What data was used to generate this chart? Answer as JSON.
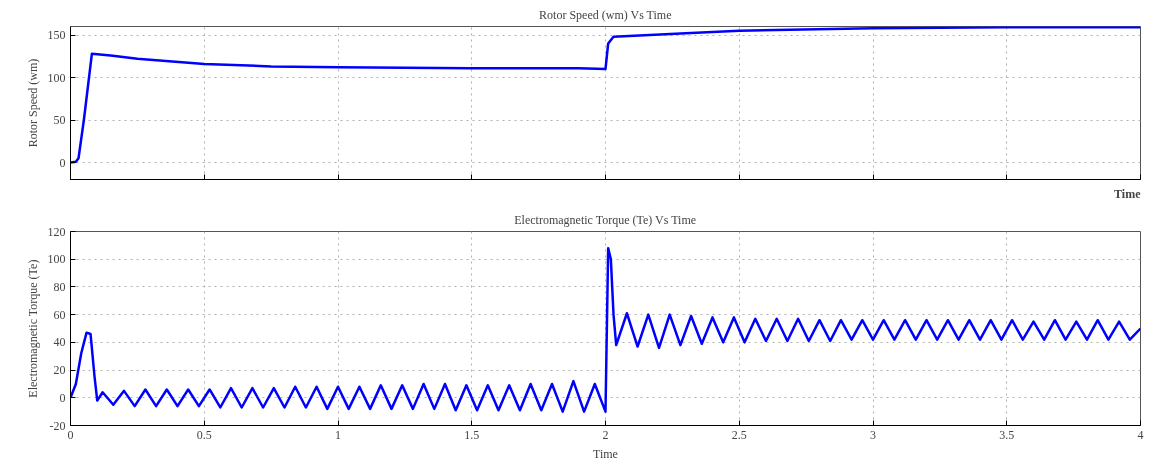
{
  "chart_data": [
    {
      "type": "line",
      "title": "Rotor Speed (wm) Vs Time",
      "xlabel": "Time",
      "ylabel": "Rotor Speed (wm)",
      "xlim": [
        0,
        4
      ],
      "xticks": [
        0,
        0.5,
        1,
        1.5,
        2,
        2.5,
        3,
        3.5,
        4
      ],
      "ylim": [
        -20,
        160
      ],
      "yticks": [
        0,
        50,
        100,
        150
      ],
      "grid": true,
      "tick_labels": "y",
      "line_style": "solid",
      "series": [
        {
          "color": "#0000ff",
          "x": [
            0,
            0.02,
            0.03,
            0.05,
            0.08,
            0.15,
            0.25,
            0.5,
            0.75,
            1,
            1.5,
            1.9,
            2,
            2.01,
            2.03,
            2.3,
            2.5,
            3,
            3.5,
            4
          ],
          "values": [
            0,
            1,
            5,
            50,
            128,
            126,
            122,
            116,
            113,
            112,
            111,
            111,
            110,
            140,
            148,
            152,
            155,
            158,
            159,
            159
          ]
        }
      ]
    },
    {
      "type": "line",
      "title": "Electromagnetic Torque (Te) Vs Time",
      "xlabel": "Time",
      "ylabel": "Electromagnetic Torque (Te)",
      "xlim": [
        0,
        4
      ],
      "xticks": [
        0,
        0.5,
        1,
        1.5,
        2,
        2.5,
        3,
        3.5,
        4
      ],
      "ylim": [
        -20,
        120
      ],
      "yticks": [
        -20,
        0,
        20,
        40,
        60,
        80,
        100,
        120
      ],
      "grid": true,
      "line_style": "solid",
      "series": [
        {
          "color": "#0000ff",
          "x": [
            0,
            0.02,
            0.04,
            0.06,
            0.075,
            0.09,
            0.1,
            0.12,
            0.16,
            0.2,
            0.24,
            0.28,
            0.32,
            0.36,
            0.4,
            0.44,
            0.48,
            0.52,
            0.56,
            0.6,
            0.64,
            0.68,
            0.72,
            0.76,
            0.8,
            0.84,
            0.88,
            0.92,
            0.96,
            1.0,
            1.04,
            1.08,
            1.12,
            1.16,
            1.2,
            1.24,
            1.28,
            1.32,
            1.36,
            1.4,
            1.44,
            1.48,
            1.52,
            1.56,
            1.6,
            1.64,
            1.68,
            1.72,
            1.76,
            1.8,
            1.84,
            1.88,
            1.92,
            1.96,
            2.0,
            2.01,
            2.02,
            2.03,
            2.04,
            2.08,
            2.12,
            2.16,
            2.2,
            2.24,
            2.28,
            2.32,
            2.36,
            2.4,
            2.44,
            2.48,
            2.52,
            2.56,
            2.6,
            2.64,
            2.68,
            2.72,
            2.76,
            2.8,
            2.84,
            2.88,
            2.92,
            2.96,
            3.0,
            3.04,
            3.08,
            3.12,
            3.16,
            3.2,
            3.24,
            3.28,
            3.32,
            3.36,
            3.4,
            3.44,
            3.48,
            3.52,
            3.56,
            3.6,
            3.64,
            3.68,
            3.72,
            3.76,
            3.8,
            3.84,
            3.88,
            3.92,
            3.96,
            4.0
          ],
          "values": [
            0,
            10,
            32,
            47,
            46,
            15,
            -2,
            4,
            -5,
            5,
            -6,
            6,
            -6,
            6,
            -6,
            6,
            -6,
            6,
            -7,
            7,
            -7,
            7,
            -7,
            7,
            -7,
            8,
            -7,
            8,
            -8,
            8,
            -8,
            8,
            -8,
            9,
            -8,
            9,
            -8,
            10,
            -8,
            10,
            -9,
            9,
            -9,
            9,
            -9,
            9,
            -9,
            10,
            -9,
            10,
            -10,
            12,
            -10,
            10,
            -10,
            108,
            100,
            60,
            38,
            61,
            37,
            60,
            36,
            60,
            38,
            59,
            39,
            58,
            40,
            58,
            40,
            57,
            41,
            57,
            41,
            57,
            41,
            56,
            41,
            56,
            42,
            56,
            42,
            56,
            42,
            56,
            42,
            56,
            42,
            56,
            42,
            56,
            42,
            56,
            42,
            56,
            42,
            55,
            42,
            56,
            42,
            55,
            42,
            56,
            42,
            55,
            42,
            50
          ]
        }
      ]
    }
  ]
}
